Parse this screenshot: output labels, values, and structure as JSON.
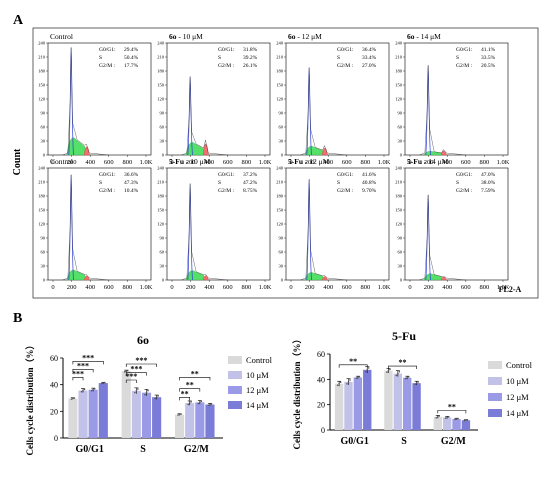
{
  "panel_a": {
    "label": "A",
    "y_axis_label": "Count",
    "x_axis_label": "FL2-A",
    "phase_labels": [
      "G0/G1:",
      "S",
      "G2/M :"
    ],
    "x_ticks": [
      "0",
      "200",
      "400",
      "600",
      "800",
      "1.0K"
    ],
    "y_ticks": [
      "0",
      "30",
      "60",
      "90",
      "120",
      "150",
      "180",
      "210",
      "240"
    ],
    "y_tick_values": [
      0,
      30,
      60,
      90,
      120,
      150,
      180,
      210,
      240
    ],
    "rows": [
      [
        {
          "bold": "",
          "title": "Control",
          "values": [
            "29.4%",
            "50.4%",
            "17.7%"
          ],
          "peak": 0.96,
          "s": 0.55,
          "g2": 0.28
        },
        {
          "bold": "6o",
          "title": " - 10 μM",
          "values": [
            "31.8%",
            "39.2%",
            "26.1%"
          ],
          "peak": 0.7,
          "s": 0.4,
          "g2": 0.38
        },
        {
          "bold": "6o",
          "title": " - 12 μM",
          "values": [
            "36.4%",
            "33.4%",
            "27.0%"
          ],
          "peak": 0.78,
          "s": 0.28,
          "g2": 0.24
        },
        {
          "bold": "6o",
          "title": " - 14 μM",
          "values": [
            "41.1%",
            "33.5%",
            "20.5%"
          ],
          "peak": 0.8,
          "s": 0.12,
          "g2": 0.14
        }
      ],
      [
        {
          "bold": "",
          "title": "Control",
          "values": [
            "36.6%",
            "47.3%",
            "10.4%"
          ],
          "peak": 0.94,
          "s": 0.32,
          "g2": 0.14
        },
        {
          "bold": "5-Fu",
          "title": " - 10 μM",
          "values": [
            "37.2%",
            "47.2%",
            "8.75%"
          ],
          "peak": 0.86,
          "s": 0.3,
          "g2": 0.15
        },
        {
          "bold": "5-Fu",
          "title": " - 12 μM",
          "values": [
            "41.6%",
            "40.8%",
            "9.70%"
          ],
          "peak": 0.9,
          "s": 0.24,
          "g2": 0.12
        },
        {
          "bold": "5-Fu",
          "title": " - 14 μM",
          "values": [
            "47.0%",
            "38.0%",
            "7.59%"
          ],
          "peak": 0.76,
          "s": 0.2,
          "g2": 0.1
        }
      ]
    ]
  },
  "panel_b": {
    "label": "B",
    "colors": [
      "#dadada",
      "#c2c2e8",
      "#9a9ae6",
      "#7b7bd8"
    ],
    "legend": [
      "Control",
      "10 μM",
      "12 μM",
      "14 μM"
    ]
  },
  "chart_data": [
    {
      "type": "bar",
      "title": "6o",
      "ylabel": "Cells cycle distribution（%）",
      "xlabel": "",
      "categories": [
        "G0/G1",
        "S",
        "G2/M"
      ],
      "ylim": [
        0,
        60
      ],
      "yticks": [
        0,
        20,
        40,
        60
      ],
      "legend_position": "right",
      "series": [
        {
          "name": "Control",
          "values": [
            29.6,
            50.1,
            17.6
          ],
          "errors": [
            0.6,
            0.8,
            0.6
          ]
        },
        {
          "name": "10 μM",
          "values": [
            35.6,
            35.4,
            26.2
          ],
          "errors": [
            1.5,
            2.2,
            1.6
          ]
        },
        {
          "name": "12 μM",
          "values": [
            36.2,
            34.0,
            26.7
          ],
          "errors": [
            1.2,
            2.5,
            1.4
          ]
        },
        {
          "name": "14 μM",
          "values": [
            41.2,
            30.6,
            25.1
          ],
          "errors": [
            0.6,
            1.6,
            0.9
          ]
        }
      ],
      "significance": [
        {
          "category": 0,
          "from": 0,
          "to": 1,
          "label": "***",
          "y": 45.5
        },
        {
          "category": 0,
          "from": 0,
          "to": 2,
          "label": "***",
          "y": 51.5
        },
        {
          "category": 0,
          "from": 0,
          "to": 3,
          "label": "***",
          "y": 57.5
        },
        {
          "category": 1,
          "from": 0,
          "to": 1,
          "label": "***",
          "y": 43.5
        },
        {
          "category": 1,
          "from": 0,
          "to": 2,
          "label": "***",
          "y": 49.0
        },
        {
          "category": 1,
          "from": 0,
          "to": 3,
          "label": "***",
          "y": 55.5
        },
        {
          "category": 2,
          "from": 0,
          "to": 1,
          "label": "**",
          "y": 30.5
        },
        {
          "category": 2,
          "from": 0,
          "to": 2,
          "label": "**",
          "y": 37.0
        },
        {
          "category": 2,
          "from": 0,
          "to": 3,
          "label": "**",
          "y": 45.5
        }
      ]
    },
    {
      "type": "bar",
      "title": "5-Fu",
      "ylabel": "Cells cycle distribution（%）",
      "xlabel": "",
      "categories": [
        "G0/G1",
        "S",
        "G2/M"
      ],
      "ylim": [
        0,
        60
      ],
      "yticks": [
        0,
        20,
        40,
        60
      ],
      "legend_position": "right",
      "series": [
        {
          "name": "Control",
          "values": [
            36.5,
            46.8,
            10.4
          ],
          "errors": [
            2.0,
            1.8,
            1.2
          ]
        },
        {
          "name": "10 μM",
          "values": [
            38.0,
            44.5,
            9.9
          ],
          "errors": [
            2.5,
            2.4,
            0.9
          ]
        },
        {
          "name": "12 μM",
          "values": [
            41.5,
            41.3,
            8.7
          ],
          "errors": [
            1.0,
            1.2,
            0.6
          ]
        },
        {
          "name": "14 μM",
          "values": [
            47.5,
            37.0,
            7.7
          ],
          "errors": [
            2.5,
            1.5,
            0.5
          ]
        }
      ],
      "significance": [
        {
          "category": 0,
          "from": 0,
          "to": 3,
          "label": "**",
          "y": 51.5
        },
        {
          "category": 1,
          "from": 0,
          "to": 3,
          "label": "**",
          "y": 50.5
        },
        {
          "category": 2,
          "from": 0,
          "to": 3,
          "label": "**",
          "y": 15.5
        }
      ]
    }
  ]
}
